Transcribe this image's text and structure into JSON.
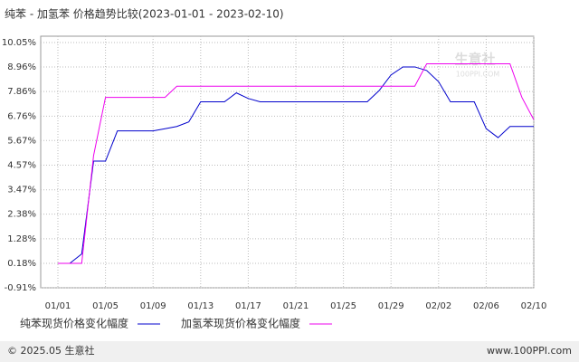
{
  "chart_data": {
    "type": "line",
    "title": "纯苯 - 加氢苯 价格趋势比较(2023-01-01 - 2023-02-10)",
    "watermark": "生意社",
    "watermark_sub": "100PPI.COM",
    "footer_left": "© 2025.05 生意社",
    "footer_right": "www.100PPI.com",
    "categories": [
      "01/01",
      null,
      null,
      null,
      "01/05",
      null,
      null,
      null,
      "01/09",
      null,
      null,
      null,
      "01/13",
      null,
      null,
      null,
      "01/17",
      null,
      null,
      null,
      "01/21",
      null,
      null,
      null,
      "01/25",
      null,
      null,
      null,
      "01/29",
      null,
      null,
      null,
      "02/02",
      null,
      null,
      null,
      "02/06",
      null,
      null,
      null,
      "02/10"
    ],
    "series": [
      {
        "name": "纯苯现货价格变化幅度",
        "color": "#0000cc",
        "values": [
          0.18,
          0.18,
          0.6,
          4.75,
          4.75,
          6.1,
          6.1,
          6.1,
          6.1,
          6.2,
          6.3,
          6.5,
          7.4,
          7.4,
          7.4,
          7.8,
          7.55,
          7.4,
          7.4,
          7.4,
          7.4,
          7.4,
          7.4,
          7.4,
          7.4,
          7.4,
          7.4,
          7.9,
          8.6,
          8.96,
          8.96,
          8.8,
          8.3,
          7.4,
          7.4,
          7.4,
          6.2,
          5.8,
          6.3,
          6.3,
          6.3
        ]
      },
      {
        "name": "加氢苯现货价格变化幅度",
        "color": "#ee00ee",
        "values": [
          0.18,
          0.18,
          0.18,
          5.0,
          7.6,
          7.6,
          7.6,
          7.6,
          7.6,
          7.6,
          8.1,
          8.1,
          8.1,
          8.1,
          8.1,
          8.1,
          8.1,
          8.1,
          8.1,
          8.1,
          8.1,
          8.1,
          8.1,
          8.1,
          8.1,
          8.1,
          8.1,
          8.1,
          8.1,
          8.1,
          8.1,
          9.1,
          9.1,
          9.1,
          9.1,
          9.1,
          9.1,
          9.1,
          9.1,
          7.6,
          6.6
        ]
      }
    ],
    "ylim": [
      -0.91,
      10.05
    ],
    "yticks": [
      {
        "value": 10.05,
        "label": "10.05%"
      },
      {
        "value": 8.96,
        "label": "8.96%"
      },
      {
        "value": 7.86,
        "label": "7.86%"
      },
      {
        "value": 6.76,
        "label": "6.76%"
      },
      {
        "value": 5.67,
        "label": "5.67%"
      },
      {
        "value": 4.57,
        "label": "4.57%"
      },
      {
        "value": 3.47,
        "label": "3.47%"
      },
      {
        "value": 2.38,
        "label": "2.38%"
      },
      {
        "value": 1.28,
        "label": "1.28%"
      },
      {
        "value": 0.18,
        "label": "0.18%"
      },
      {
        "value": -0.91,
        "label": "-0.91%"
      }
    ],
    "grid": true
  }
}
